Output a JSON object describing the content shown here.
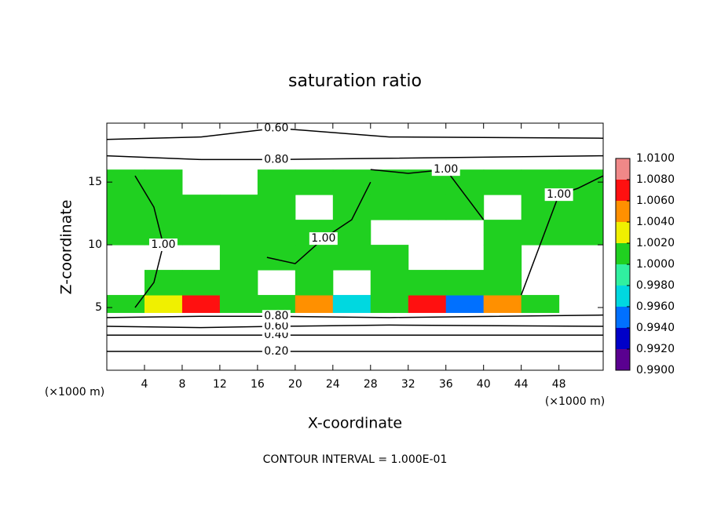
{
  "chart_data": {
    "type": "contour",
    "title": "saturation ratio",
    "xlabel": "X-coordinate",
    "ylabel": "Z-coordinate",
    "x_unit": "(×1000 m)",
    "x_unit_right": "(×1000 m)",
    "note": "CONTOUR INTERVAL = 1.000E-01",
    "xlim": [
      0,
      52.7
    ],
    "ylim": [
      0,
      19.7
    ],
    "xticks": [
      4,
      8,
      12,
      16,
      20,
      24,
      28,
      32,
      36,
      40,
      44,
      48
    ],
    "yticks": [
      5,
      10,
      15
    ],
    "field": {
      "x": [
        0,
        4,
        8,
        12,
        16,
        20,
        24,
        28,
        32,
        36,
        40,
        44,
        48,
        52.7
      ],
      "z": [
        4.6,
        6,
        8,
        10,
        12,
        14,
        16
      ],
      "values": [
        [
          1.0002,
          1.003,
          1.007,
          1.001,
          1.0005,
          1.005,
          0.997,
          1.001,
          1.007,
          0.995,
          1.004,
          1.0006,
          null
        ],
        [
          null,
          1.0006,
          1.0006,
          1.0008,
          null,
          1.0006,
          null,
          1.0006,
          1.0006,
          1.0006,
          1.0006,
          null,
          null
        ],
        [
          null,
          null,
          null,
          1.0006,
          1.0006,
          1.0006,
          1.0006,
          1.0006,
          null,
          null,
          1.0006,
          null,
          null
        ],
        [
          1.0006,
          1.0006,
          1.0006,
          1.0006,
          1.0006,
          1.0006,
          1.0006,
          null,
          null,
          null,
          1.0006,
          1.0006,
          1.0006
        ],
        [
          1.0006,
          1.0006,
          1.0006,
          1.0006,
          1.0006,
          null,
          1.0006,
          1.0006,
          1.0006,
          1.0006,
          null,
          1.0006,
          1.0006
        ],
        [
          1.0006,
          1.0006,
          null,
          null,
          1.0006,
          1.0006,
          1.0006,
          1.0006,
          1.0006,
          1.0006,
          1.0006,
          1.0006,
          1.0006
        ]
      ]
    },
    "colorbar": {
      "ticks": [
        {
          "value": 0.99,
          "label": "0.9900"
        },
        {
          "value": 0.992,
          "label": "0.9920"
        },
        {
          "value": 0.994,
          "label": "0.9940"
        },
        {
          "value": 0.996,
          "label": "0.9960"
        },
        {
          "value": 0.998,
          "label": "0.9980"
        },
        {
          "value": 1.0,
          "label": "1.0000"
        },
        {
          "value": 1.002,
          "label": "1.0020"
        },
        {
          "value": 1.004,
          "label": "1.0040"
        },
        {
          "value": 1.006,
          "label": "1.0060"
        },
        {
          "value": 1.008,
          "label": "1.0080"
        },
        {
          "value": 1.01,
          "label": "1.0100"
        }
      ],
      "colors": [
        "#5a0090",
        "#0000c8",
        "#0070ff",
        "#00d8e0",
        "#30f0a0",
        "#20d020",
        "#f0f000",
        "#ff9000",
        "#ff1010",
        "#f08888"
      ]
    },
    "contours": [
      {
        "level": {
          "value": 0.2,
          "label": "0.20"
        },
        "x": [
          0,
          10,
          18,
          30,
          52.7
        ],
        "z": [
          1.5,
          1.5,
          1.5,
          1.5,
          1.5
        ]
      },
      {
        "level": {
          "value": 0.4,
          "label": "0.40"
        },
        "x": [
          0,
          10,
          18,
          30,
          52.7
        ],
        "z": [
          2.8,
          2.8,
          2.8,
          2.8,
          2.8
        ]
      },
      {
        "level": {
          "value": 0.6,
          "label": "0.60"
        },
        "x": [
          0,
          10,
          18,
          30,
          52.7
        ],
        "z": [
          3.5,
          3.4,
          3.5,
          3.6,
          3.5
        ]
      },
      {
        "level": {
          "value": 0.8,
          "label": "0.80"
        },
        "x": [
          0,
          10,
          18,
          30,
          52.7
        ],
        "z": [
          4.2,
          4.3,
          4.3,
          4.2,
          4.4
        ]
      },
      {
        "level": {
          "value": 0.8,
          "label": "0.80"
        },
        "x": [
          0,
          10,
          18,
          30,
          52.7
        ],
        "z": [
          17.1,
          16.8,
          16.8,
          16.9,
          17.1
        ]
      },
      {
        "level": {
          "value": 0.6,
          "label": "0.60"
        },
        "x": [
          0,
          10,
          18,
          30,
          52.7
        ],
        "z": [
          18.4,
          18.6,
          19.3,
          18.6,
          18.5
        ]
      },
      {
        "level": {
          "value": 1.0,
          "label": "1.00"
        },
        "x": [
          28,
          32,
          36,
          38,
          40
        ],
        "z": [
          16,
          15.7,
          16,
          14,
          12
        ]
      },
      {
        "level": {
          "value": 1.0,
          "label": "1.00"
        },
        "x": [
          17,
          20,
          23,
          26,
          28
        ],
        "z": [
          9,
          8.5,
          10.5,
          12,
          15
        ]
      },
      {
        "level": {
          "value": 1.0,
          "label": "1.00"
        },
        "x": [
          44,
          46,
          48,
          50,
          52.7
        ],
        "z": [
          6,
          10,
          14,
          14.5,
          15.5
        ]
      },
      {
        "level": {
          "value": 1.0,
          "label": "1.00"
        },
        "x": [
          3,
          5,
          6,
          5,
          3
        ],
        "z": [
          15.5,
          13,
          10,
          7,
          5
        ]
      }
    ]
  }
}
